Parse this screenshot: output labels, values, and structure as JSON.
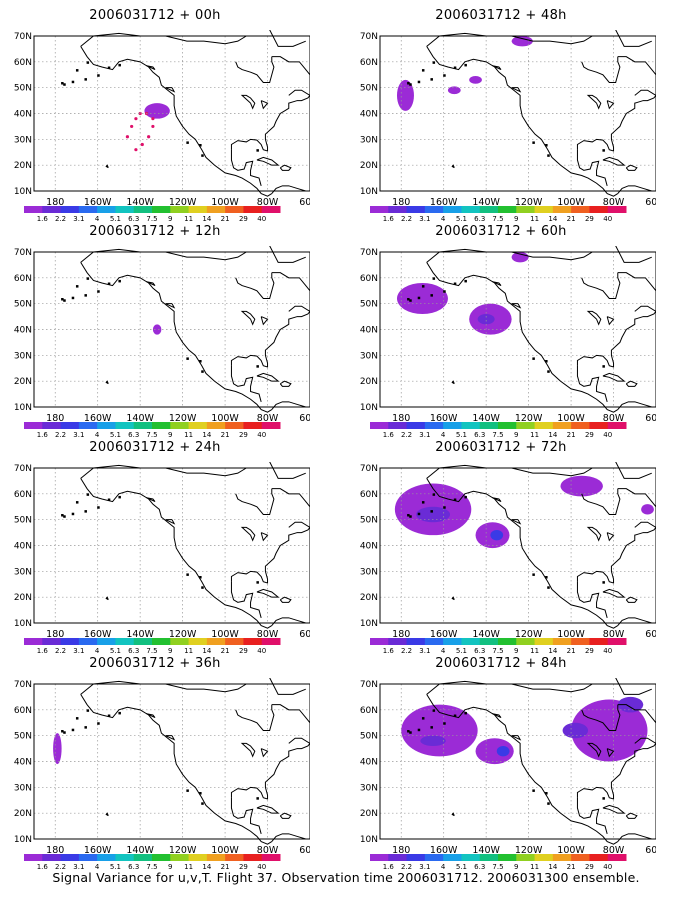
{
  "colorbar": {
    "labels": [
      "1.6",
      "2.2",
      "3.1",
      "4",
      "5.1",
      "6.3",
      "7.5",
      "9",
      "11",
      "14",
      "21",
      "29",
      "40"
    ],
    "colors": [
      "#9b2bd6",
      "#6a2bd6",
      "#3a3ae6",
      "#2a6af0",
      "#18a0e8",
      "#12c4c0",
      "#12c080",
      "#22c030",
      "#90d020",
      "#e0d020",
      "#f0a020",
      "#f06020",
      "#e82020",
      "#e0106a"
    ]
  },
  "maps": {
    "lat_labels": [
      "70N",
      "60N",
      "50N",
      "40N",
      "30N",
      "20N",
      "10N"
    ],
    "lon_labels": [
      "180",
      "160W",
      "140W",
      "120W",
      "100W",
      "80W",
      "60W"
    ]
  },
  "panels": [
    {
      "title": "2006031712 + 00h",
      "blobs": [
        {
          "lon": -132,
          "lat": 41,
          "rx": 6,
          "ry": 3,
          "c": 0
        }
      ],
      "dots": true
    },
    {
      "title": "2006031712 + 48h",
      "blobs": [
        {
          "lon": -178,
          "lat": 47,
          "rx": 4,
          "ry": 6,
          "c": 0
        },
        {
          "lon": -123,
          "lat": 68,
          "rx": 5,
          "ry": 2,
          "c": 0
        },
        {
          "lon": -155,
          "lat": 49,
          "rx": 3,
          "ry": 1.5,
          "c": 0
        },
        {
          "lon": -145,
          "lat": 53,
          "rx": 3,
          "ry": 1.5,
          "c": 0
        }
      ]
    },
    {
      "title": "2006031712 + 12h",
      "blobs": [
        {
          "lon": -132,
          "lat": 40,
          "rx": 2,
          "ry": 2,
          "c": 0
        }
      ]
    },
    {
      "title": "2006031712 + 60h",
      "blobs": [
        {
          "lon": -170,
          "lat": 52,
          "rx": 12,
          "ry": 6,
          "c": 0
        },
        {
          "lon": -138,
          "lat": 44,
          "rx": 10,
          "ry": 6,
          "c": 0
        },
        {
          "lon": -140,
          "lat": 44,
          "rx": 4,
          "ry": 2,
          "c": 1
        },
        {
          "lon": -124,
          "lat": 68,
          "rx": 4,
          "ry": 2,
          "c": 0
        }
      ]
    },
    {
      "title": "2006031712 + 24h",
      "blobs": []
    },
    {
      "title": "2006031712 + 72h",
      "blobs": [
        {
          "lon": -165,
          "lat": 54,
          "rx": 18,
          "ry": 10,
          "c": 0
        },
        {
          "lon": -137,
          "lat": 44,
          "rx": 8,
          "ry": 5,
          "c": 0
        },
        {
          "lon": -135,
          "lat": 44,
          "rx": 3,
          "ry": 2,
          "c": 2
        },
        {
          "lon": -165,
          "lat": 52,
          "rx": 8,
          "ry": 3,
          "c": 1
        },
        {
          "lon": -95,
          "lat": 63,
          "rx": 10,
          "ry": 4,
          "c": 0
        },
        {
          "lon": -64,
          "lat": 54,
          "rx": 3,
          "ry": 2,
          "c": 0
        }
      ]
    },
    {
      "title": "2006031712 + 36h",
      "blobs": [
        {
          "lon": -179,
          "lat": 45,
          "rx": 2,
          "ry": 6,
          "c": 0
        }
      ]
    },
    {
      "title": "2006031712 + 84h",
      "blobs": [
        {
          "lon": -162,
          "lat": 52,
          "rx": 18,
          "ry": 10,
          "c": 0
        },
        {
          "lon": -136,
          "lat": 44,
          "rx": 9,
          "ry": 5,
          "c": 0
        },
        {
          "lon": -132,
          "lat": 44,
          "rx": 3,
          "ry": 2,
          "c": 2
        },
        {
          "lon": -165,
          "lat": 48,
          "rx": 6,
          "ry": 2,
          "c": 1
        },
        {
          "lon": -82,
          "lat": 52,
          "rx": 18,
          "ry": 12,
          "c": 0
        },
        {
          "lon": -72,
          "lat": 62,
          "rx": 6,
          "ry": 3,
          "c": 1
        },
        {
          "lon": -98,
          "lat": 52,
          "rx": 6,
          "ry": 3,
          "c": 1
        }
      ]
    }
  ],
  "footer": "Signal Variance for u,v,T. Flight 37. Observation time 2006031712. 2006031300 ensemble."
}
